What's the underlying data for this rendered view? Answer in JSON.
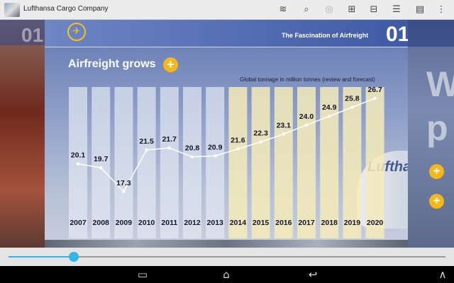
{
  "app": {
    "title": "Lufthansa Cargo Company",
    "logo_icon": "app-logo-icon"
  },
  "toolbar": {
    "icons": [
      "layers-icon",
      "search-icon",
      "audio-icon",
      "book-open-icon",
      "bookmarks-icon",
      "list-icon",
      "notes-icon",
      "overflow-menu-icon"
    ]
  },
  "left_page": {
    "page_number": "01"
  },
  "page": {
    "header_title": "The Fascination of Airfreight",
    "page_number": "01",
    "chart_title": "Airfreight grows",
    "plus_label": "+",
    "plane_text": "Lufthansa"
  },
  "right_page": {
    "big_letters": [
      "W",
      "p"
    ],
    "plus_labels": [
      "+",
      "+"
    ]
  },
  "chart_data": {
    "type": "line",
    "title": "",
    "subtitle": "Global tonnage in million tonnes (review and forecast)",
    "categories": [
      "2007",
      "2008",
      "2009",
      "2010",
      "2011",
      "2012",
      "2013",
      "2014",
      "2015",
      "2016",
      "2017",
      "2018",
      "2019",
      "2020"
    ],
    "values": [
      20.1,
      19.7,
      17.3,
      21.5,
      21.7,
      20.8,
      20.9,
      21.6,
      22.3,
      23.1,
      24.0,
      24.9,
      25.8,
      26.7
    ],
    "forecast_from": "2014",
    "colors": {
      "review_column": "#e4e8f2",
      "forecast_column": "#f4ebb8",
      "line": "#ffffff"
    }
  },
  "slider": {
    "position": 0.15
  },
  "navbar": {
    "buttons": [
      {
        "name": "recent-apps-icon",
        "glyph": "▭"
      },
      {
        "name": "home-icon",
        "glyph": "⌂"
      },
      {
        "name": "back-icon",
        "glyph": "↩"
      },
      {
        "name": "collapse-icon",
        "glyph": "∧"
      }
    ]
  }
}
